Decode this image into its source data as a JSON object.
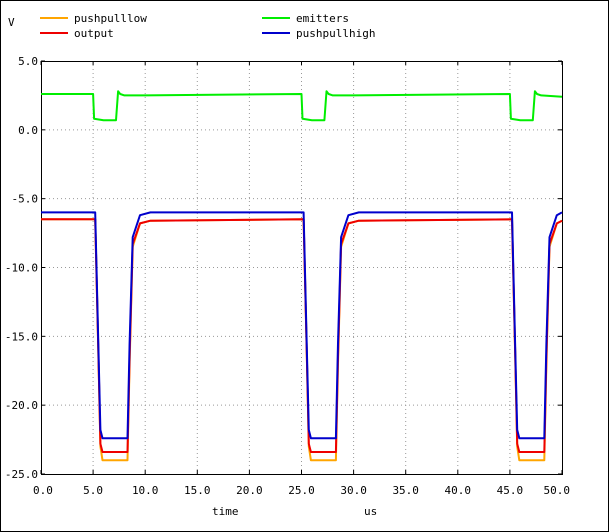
{
  "chart_data": {
    "type": "line",
    "ylabel": "V",
    "xlabel": "time",
    "xunit": "us",
    "xlim": [
      0,
      50
    ],
    "ylim": [
      -25,
      5
    ],
    "xticks": [
      0,
      5,
      10,
      15,
      20,
      25,
      30,
      35,
      40,
      45,
      50
    ],
    "xtick_labels": [
      "0.0",
      "5.0",
      "10.0",
      "15.0",
      "20.0",
      "25.0",
      "30.0",
      "35.0",
      "40.0",
      "45.0",
      "50.0"
    ],
    "yticks": [
      5,
      0,
      -5,
      -10,
      -15,
      -20,
      -25
    ],
    "ytick_labels": [
      "5.0",
      "0.0",
      "-5.0",
      "-10.0",
      "-15.0",
      "-20.0",
      "-25.0"
    ],
    "grid": true,
    "legend_position": "top",
    "series": [
      {
        "name": "pushpulllow",
        "color": "#ffa500",
        "x": [
          0,
          5.2,
          5.5,
          5.7,
          5.9,
          8.3,
          8.5,
          8.8,
          9.5,
          10.5,
          25.2,
          25.5,
          25.7,
          25.9,
          28.3,
          28.5,
          28.8,
          29.5,
          30.5,
          45.2,
          45.5,
          45.7,
          45.9,
          48.3,
          48.5,
          48.8,
          49.5,
          50
        ],
        "y": [
          -6.5,
          -6.5,
          -16,
          -23,
          -24,
          -24,
          -17,
          -8.5,
          -6.8,
          -6.6,
          -6.5,
          -16,
          -23,
          -24,
          -24,
          -17,
          -8.5,
          -6.8,
          -6.6,
          -6.5,
          -16,
          -23,
          -24,
          -24,
          -17,
          -8.5,
          -6.8,
          -6.6
        ]
      },
      {
        "name": "output",
        "color": "#ee0000",
        "x": [
          0,
          5.2,
          5.5,
          5.7,
          5.9,
          8.3,
          8.5,
          8.8,
          9.5,
          10.5,
          25.2,
          25.5,
          25.7,
          25.9,
          28.3,
          28.5,
          28.8,
          29.5,
          30.5,
          45.2,
          45.5,
          45.7,
          45.9,
          48.3,
          48.5,
          48.8,
          49.5,
          50
        ],
        "y": [
          -6.5,
          -6.5,
          -16,
          -22.8,
          -23.4,
          -23.4,
          -16.5,
          -8.3,
          -6.8,
          -6.6,
          -6.5,
          -16,
          -22.8,
          -23.4,
          -23.4,
          -16.5,
          -8.3,
          -6.8,
          -6.6,
          -6.5,
          -16,
          -22.8,
          -23.4,
          -23.4,
          -16.5,
          -8.3,
          -6.8,
          -6.6
        ]
      },
      {
        "name": "emitters",
        "color": "#00ee00",
        "x": [
          0,
          5.0,
          5.1,
          6.0,
          7.2,
          7.4,
          7.6,
          8.0,
          10.0,
          25.0,
          25.1,
          26.0,
          27.2,
          27.4,
          27.6,
          28.0,
          30.0,
          45.0,
          45.1,
          46.0,
          47.2,
          47.4,
          47.6,
          48.0,
          50
        ],
        "y": [
          2.6,
          2.6,
          0.8,
          0.7,
          0.7,
          2.8,
          2.6,
          2.5,
          2.5,
          2.6,
          0.8,
          0.7,
          0.7,
          2.8,
          2.6,
          2.5,
          2.5,
          2.6,
          0.8,
          0.7,
          0.7,
          2.8,
          2.6,
          2.5,
          2.4
        ]
      },
      {
        "name": "pushpullhigh",
        "color": "#0000cc",
        "x": [
          0,
          5.2,
          5.5,
          5.7,
          5.9,
          8.3,
          8.5,
          8.8,
          9.5,
          10.5,
          25.2,
          25.5,
          25.7,
          25.9,
          28.3,
          28.5,
          28.8,
          29.5,
          30.5,
          45.2,
          45.5,
          45.7,
          45.9,
          48.3,
          48.5,
          48.8,
          49.5,
          50
        ],
        "y": [
          -6.0,
          -6.0,
          -15.5,
          -21.8,
          -22.4,
          -22.4,
          -15.5,
          -7.8,
          -6.2,
          -6.0,
          -6.0,
          -15.5,
          -21.8,
          -22.4,
          -22.4,
          -15.5,
          -7.8,
          -6.2,
          -6.0,
          -6.0,
          -15.5,
          -21.8,
          -22.4,
          -22.4,
          -15.5,
          -7.8,
          -6.2,
          -6.0
        ]
      }
    ]
  }
}
